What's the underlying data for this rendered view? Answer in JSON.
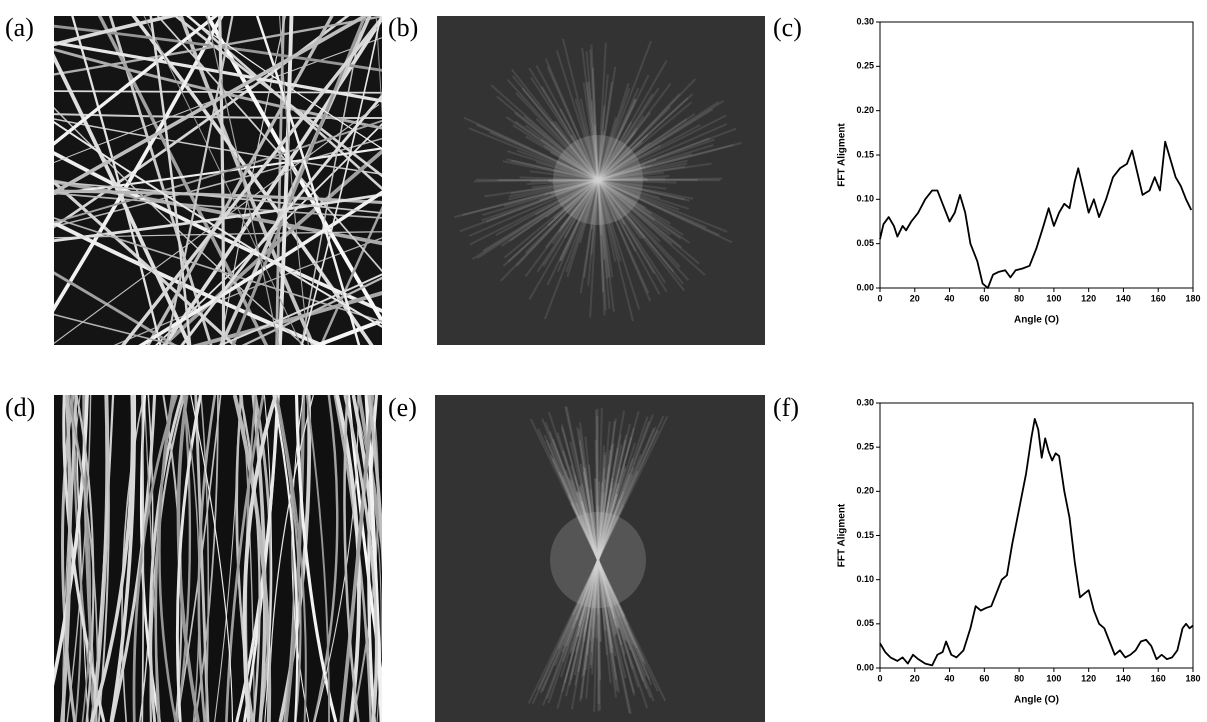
{
  "panels": [
    "(a)",
    "(b)",
    "(c)",
    "(d)",
    "(e)",
    "(f)"
  ],
  "chart_data": [
    {
      "type": "line",
      "x_label": "Angle (O)",
      "y_label": "FFT Aligment",
      "xlim": [
        0,
        180
      ],
      "xticks": [
        0,
        20,
        40,
        60,
        80,
        100,
        120,
        140,
        160,
        180
      ],
      "ylim": [
        0,
        0.3
      ],
      "yticks": [
        {
          "value": 0,
          "label": "0.00"
        },
        {
          "value": 0.05,
          "label": "0.05"
        },
        {
          "value": 0.1,
          "label": "0.10"
        },
        {
          "value": 0.15,
          "label": "0.15"
        },
        {
          "value": 0.2,
          "label": "0.20"
        },
        {
          "value": 0.25,
          "label": "0.25"
        },
        {
          "value": 0.3,
          "label": "0.30"
        }
      ],
      "color": "#000000",
      "x": [
        0,
        2,
        5,
        8,
        10,
        13,
        15,
        18,
        22,
        26,
        30,
        33,
        36,
        40,
        43,
        46,
        49,
        52,
        56,
        59,
        62,
        65,
        68,
        72,
        75,
        78,
        82,
        86,
        90,
        94,
        97,
        100,
        103,
        106,
        109,
        112,
        114,
        117,
        120,
        123,
        126,
        130,
        134,
        138,
        142,
        145,
        148,
        151,
        155,
        158,
        161,
        164,
        167,
        170,
        173,
        176,
        179
      ],
      "values": [
        0.055,
        0.072,
        0.08,
        0.07,
        0.058,
        0.07,
        0.065,
        0.075,
        0.085,
        0.1,
        0.11,
        0.11,
        0.095,
        0.075,
        0.085,
        0.105,
        0.085,
        0.05,
        0.03,
        0.005,
        0.0,
        0.015,
        0.018,
        0.02,
        0.012,
        0.02,
        0.022,
        0.025,
        0.045,
        0.07,
        0.09,
        0.07,
        0.085,
        0.095,
        0.09,
        0.12,
        0.135,
        0.11,
        0.085,
        0.1,
        0.08,
        0.1,
        0.125,
        0.135,
        0.14,
        0.155,
        0.13,
        0.105,
        0.11,
        0.125,
        0.11,
        0.165,
        0.145,
        0.125,
        0.115,
        0.1,
        0.088
      ]
    },
    {
      "type": "line",
      "x_label": "Angle (O)",
      "y_label": "FFT Aligment",
      "xlim": [
        0,
        180
      ],
      "xticks": [
        0,
        20,
        40,
        60,
        80,
        100,
        120,
        140,
        160,
        180
      ],
      "ylim": [
        0,
        0.3
      ],
      "yticks": [
        {
          "value": 0,
          "label": "0.00"
        },
        {
          "value": 0.05,
          "label": "0.05"
        },
        {
          "value": 0.1,
          "label": "0.10"
        },
        {
          "value": 0.15,
          "label": "0.15"
        },
        {
          "value": 0.2,
          "label": "0.20"
        },
        {
          "value": 0.25,
          "label": "0.25"
        },
        {
          "value": 0.3,
          "label": "0.30"
        }
      ],
      "color": "#000000",
      "x": [
        0,
        3,
        6,
        10,
        13,
        16,
        19,
        22,
        26,
        30,
        33,
        36,
        38,
        41,
        44,
        48,
        52,
        55,
        58,
        61,
        64,
        67,
        70,
        73,
        76,
        80,
        84,
        87,
        89,
        91,
        93,
        95,
        97,
        99,
        101,
        103,
        106,
        109,
        112,
        115,
        118,
        120,
        123,
        126,
        129,
        132,
        135,
        138,
        141,
        144,
        147,
        150,
        153,
        156,
        159,
        162,
        165,
        168,
        171,
        174,
        176,
        178,
        180
      ],
      "values": [
        0.028,
        0.018,
        0.012,
        0.008,
        0.012,
        0.005,
        0.015,
        0.01,
        0.005,
        0.003,
        0.015,
        0.018,
        0.03,
        0.015,
        0.012,
        0.02,
        0.045,
        0.07,
        0.065,
        0.068,
        0.07,
        0.085,
        0.1,
        0.105,
        0.14,
        0.18,
        0.22,
        0.26,
        0.282,
        0.27,
        0.238,
        0.26,
        0.245,
        0.235,
        0.243,
        0.24,
        0.2,
        0.17,
        0.12,
        0.08,
        0.085,
        0.088,
        0.065,
        0.05,
        0.045,
        0.03,
        0.015,
        0.02,
        0.012,
        0.015,
        0.02,
        0.03,
        0.032,
        0.025,
        0.01,
        0.015,
        0.01,
        0.012,
        0.02,
        0.045,
        0.05,
        0.045,
        0.048
      ]
    }
  ]
}
